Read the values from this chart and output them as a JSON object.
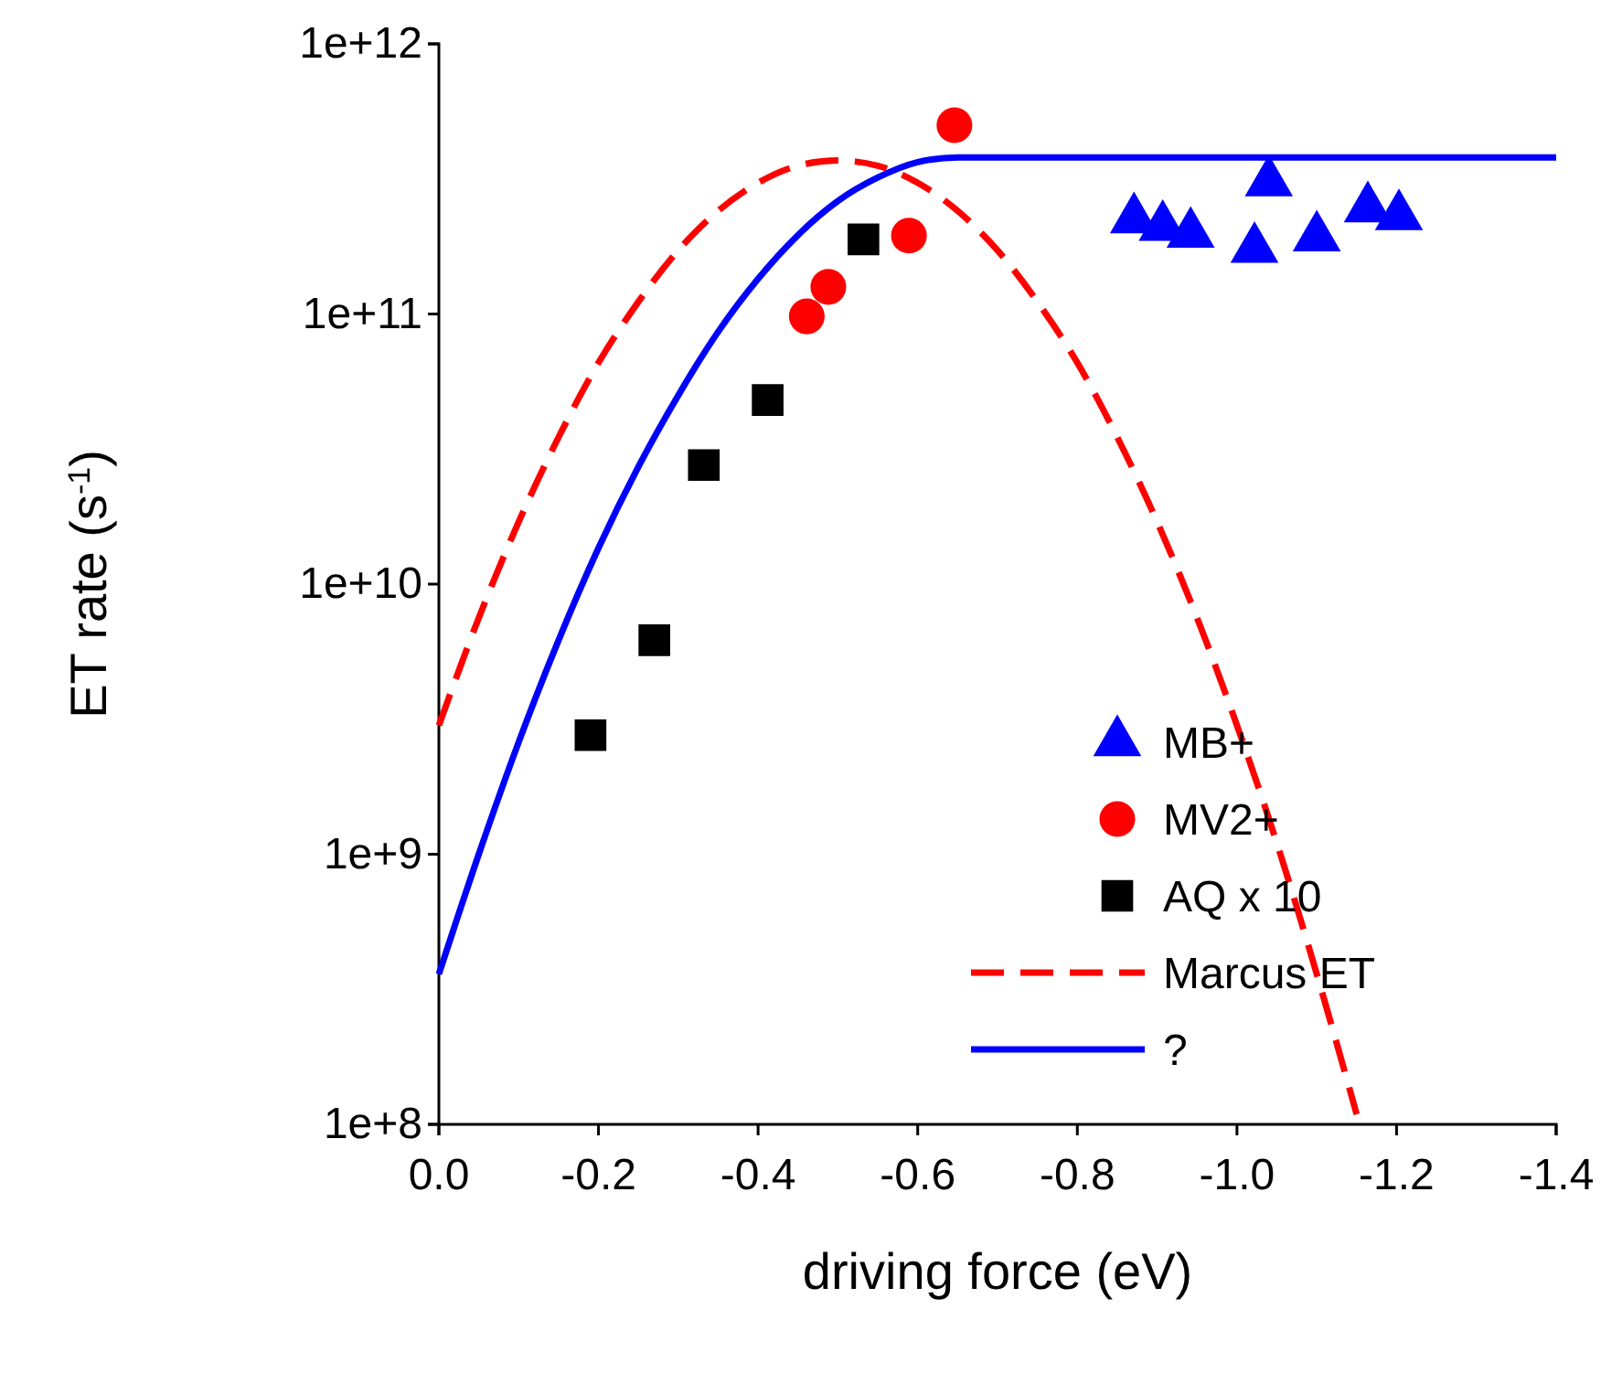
{
  "chart_data": {
    "type": "scatter",
    "xlabel": "driving force (eV)",
    "ylabel": "ET rate (s$^{-1}$)",
    "log": "y",
    "xlim": [
      0,
      -1.4
    ],
    "xticks": [
      {
        "value": 0,
        "label": "0.0"
      },
      {
        "value": -0.2,
        "label": "-0.2"
      },
      {
        "value": -0.4,
        "label": "-0.4"
      },
      {
        "value": -0.6,
        "label": "-0.6"
      },
      {
        "value": -0.8,
        "label": "-0.8"
      },
      {
        "value": -1.0,
        "label": "-1.0"
      },
      {
        "value": -1.2,
        "label": "-1.2"
      },
      {
        "value": -1.4,
        "label": "-1.4"
      }
    ],
    "ylim": [
      100000000.0,
      1000000000000.0
    ],
    "yticks": [
      {
        "value": 100000000.0,
        "label": "1e+8"
      },
      {
        "value": 1000000000.0,
        "label": "1e+9"
      },
      {
        "value": 10000000000.0,
        "label": "1e+10"
      },
      {
        "value": 100000000000.0,
        "label": "1e+11"
      },
      {
        "value": 1000000000000.0,
        "label": "1e+12"
      }
    ],
    "legend": "bottom right",
    "grid": false,
    "series": [
      {
        "name": "MB+",
        "marker": "triangle",
        "color": "#0000ff",
        "x": [
          -0.871,
          -0.907,
          -0.942,
          -1.022,
          -1.04,
          -1.1,
          -1.164,
          -1.203
        ],
        "values": [
          224000000000.0,
          210000000000.0,
          198000000000.0,
          174000000000.0,
          307000000000.0,
          192000000000.0,
          246000000000.0,
          230000000000.0
        ]
      },
      {
        "name": "MV2+",
        "marker": "circle",
        "color": "#ff0000",
        "x": [
          -0.461,
          -0.488,
          -0.589,
          -0.646
        ],
        "values": [
          98000000000.0,
          126000000000.0,
          195000000000.0,
          500000000000.0
        ]
      },
      {
        "name": "AQ x 10",
        "marker": "square",
        "color": "#000000",
        "x": [
          -0.19,
          -0.27,
          -0.332,
          -0.412,
          -0.532
        ],
        "values": [
          2760000000.0,
          6200000000.0,
          27600000000.0,
          48000000000.0,
          189000000000.0
        ]
      },
      {
        "name": "Marcus ET",
        "type": "line",
        "line_style": "dashed",
        "color": "#ff0000",
        "x": [
          0,
          -0.05,
          -0.1,
          -0.15,
          -0.2,
          -0.25,
          -0.3,
          -0.35,
          -0.4,
          -0.45,
          -0.5,
          -0.55,
          -0.6,
          -0.65,
          -0.7,
          -0.75,
          -0.8,
          -0.85,
          -0.9,
          -0.95,
          -1.0,
          -1.05,
          -1.1,
          -1.15
        ],
        "values": [
          3000000000.0,
          7500000000.0,
          17000000000.0,
          35000000000.0,
          66000000000.0,
          111000000000.0,
          172000000000.0,
          241000000000.0,
          306000000000.0,
          354000000000.0,
          370000000000.0,
          354000000000.0,
          306000000000.0,
          241000000000.0,
          172000000000.0,
          111000000000.0,
          66000000000.0,
          35000000000.0,
          17000000000.0,
          7500000000.0,
          3000000000.0,
          1100000000.0,
          360000000.0,
          109000000.0
        ]
      },
      {
        "name": "?",
        "type": "line",
        "line_style": "solid",
        "color": "#0000ff",
        "x": [
          0,
          -0.05,
          -0.1,
          -0.15,
          -0.2,
          -0.25,
          -0.3,
          -0.35,
          -0.4,
          -0.45,
          -0.5,
          -0.55,
          -0.6,
          -0.65,
          -0.8,
          -1.0,
          -1.2,
          -1.4
        ],
        "values": [
          360000000.0,
          1000000000.0,
          2600000000.0,
          6200000000.0,
          13600000000.0,
          27200000000.0,
          50000000000.0,
          86000000000.0,
          135000000000.0,
          196000000000.0,
          262000000000.0,
          320000000000.0,
          365000000000.0,
          380000000000.0,
          380000000000.0,
          380000000000.0,
          380000000000.0,
          380000000000.0
        ]
      }
    ]
  }
}
